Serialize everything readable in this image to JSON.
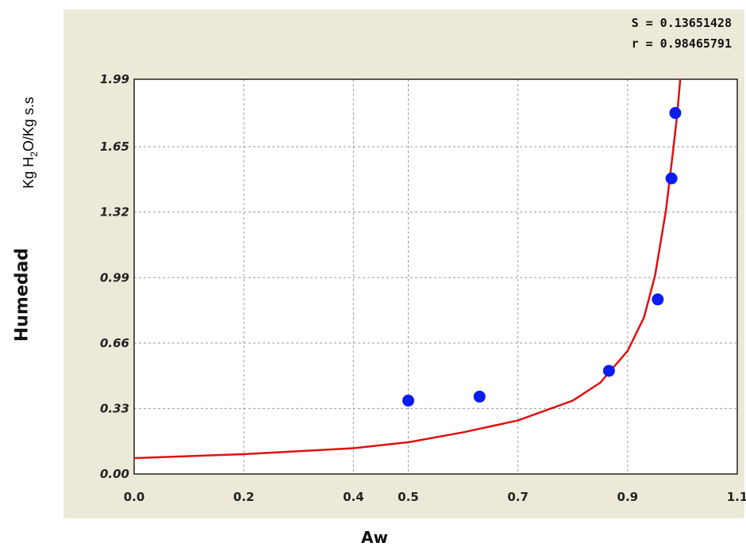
{
  "stats": {
    "s_line": "S = 0.13651428",
    "r_line": "r = 0.98465791"
  },
  "labels": {
    "unit_prefix": "Kg H",
    "unit_sub": "2",
    "unit_suffix": "O/Kg s.s"
  },
  "chart_data": {
    "type": "scatter",
    "title": "",
    "xlabel": "Aw",
    "ylabel": "Humedad",
    "xlim": [
      0.0,
      1.1
    ],
    "ylim": [
      0.0,
      1.99
    ],
    "x_ticks": [
      0.0,
      0.2,
      0.4,
      0.5,
      0.7,
      0.9,
      1.1
    ],
    "x_tick_labels": [
      "0.0",
      "0.2",
      "0.4",
      "0.5",
      "0.7",
      "0.9",
      "1.1"
    ],
    "y_ticks": [
      0.0,
      0.33,
      0.66,
      0.99,
      1.32,
      1.65,
      1.99
    ],
    "y_tick_labels": [
      "0.00",
      "0.33",
      "0.66",
      "0.99",
      "1.32",
      "1.65",
      "1.99"
    ],
    "grid": true,
    "series": [
      {
        "values": [
          {
            "x": 0.5,
            "y": 0.37
          },
          {
            "x": 0.63,
            "y": 0.39
          },
          {
            "x": 0.866,
            "y": 0.52
          },
          {
            "x": 0.955,
            "y": 0.88
          },
          {
            "x": 0.98,
            "y": 1.49
          },
          {
            "x": 0.987,
            "y": 1.82
          }
        ],
        "color": "#0a1cf0"
      }
    ],
    "fit_curve": {
      "color": "#e01010",
      "points": [
        [
          0.0,
          0.08
        ],
        [
          0.1,
          0.09
        ],
        [
          0.2,
          0.1
        ],
        [
          0.3,
          0.115
        ],
        [
          0.4,
          0.13
        ],
        [
          0.5,
          0.16
        ],
        [
          0.6,
          0.21
        ],
        [
          0.7,
          0.27
        ],
        [
          0.8,
          0.37
        ],
        [
          0.85,
          0.46
        ],
        [
          0.9,
          0.62
        ],
        [
          0.93,
          0.79
        ],
        [
          0.95,
          1.0
        ],
        [
          0.97,
          1.33
        ],
        [
          0.98,
          1.56
        ],
        [
          0.99,
          1.8
        ],
        [
          0.996,
          1.99
        ]
      ]
    }
  }
}
